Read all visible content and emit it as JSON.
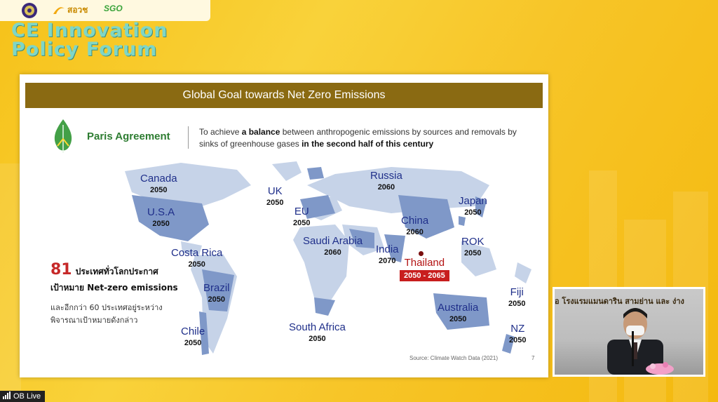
{
  "logos": {
    "ministry": "",
    "sorvor": "สอวช",
    "sgo": "SGO"
  },
  "forum": {
    "title_line1": "CE Innovation",
    "title_line2": "Policy Forum"
  },
  "slide": {
    "header": "Global Goal towards Net Zero Emissions",
    "paris_label": "Paris Agreement",
    "paris_text_pre": "To achieve ",
    "paris_text_bold1": "a balance",
    "paris_text_mid": " between anthropogenic emissions by sources and removals by sinks of greenhouse gases ",
    "paris_text_bold2": "in the second half of this century",
    "countries": [
      {
        "name": "Canada",
        "year": "2050"
      },
      {
        "name": "U.S.A",
        "year": "2050"
      },
      {
        "name": "Costa Rica",
        "year": "2050"
      },
      {
        "name": "Brazil",
        "year": "2050"
      },
      {
        "name": "Chile",
        "year": "2050"
      },
      {
        "name": "UK",
        "year": "2050"
      },
      {
        "name": "EU",
        "year": "2050"
      },
      {
        "name": "Saudi Arabia",
        "year": "2060"
      },
      {
        "name": "South Africa",
        "year": "2050"
      },
      {
        "name": "Russia",
        "year": "2060"
      },
      {
        "name": "China",
        "year": "2060"
      },
      {
        "name": "India",
        "year": "2070"
      },
      {
        "name": "Thailand",
        "year": "2050 - 2065"
      },
      {
        "name": "Japan",
        "year": "2050"
      },
      {
        "name": "ROK",
        "year": "2050"
      },
      {
        "name": "Australia",
        "year": "2050"
      },
      {
        "name": "Fiji",
        "year": "2050"
      },
      {
        "name": "NZ",
        "year": "2050"
      }
    ],
    "stat_number": "81",
    "stat_line1": "ประเทศทั่วโลกประกาศ",
    "stat_line2": "เป้าหมาย Net-zero emissions",
    "stat_line3": "และอีกกว่า 60 ประเทศอยู่ระหว่าง",
    "stat_line4": "พิจารณาเป้าหมายดังกล่าว",
    "source": "Source: Climate Watch Data (2021)",
    "page_number": "7"
  },
  "video": {
    "sign_text": "อ โรงแรมแมนดาริน สามย่าน และ ง่าง"
  },
  "live_badge": "OB Live",
  "colors": {
    "header_bg": "#8a6a12",
    "country_name": "#1f2f8a",
    "thailand_red": "#c81e1e",
    "background_yellow": "#f6c21a"
  }
}
